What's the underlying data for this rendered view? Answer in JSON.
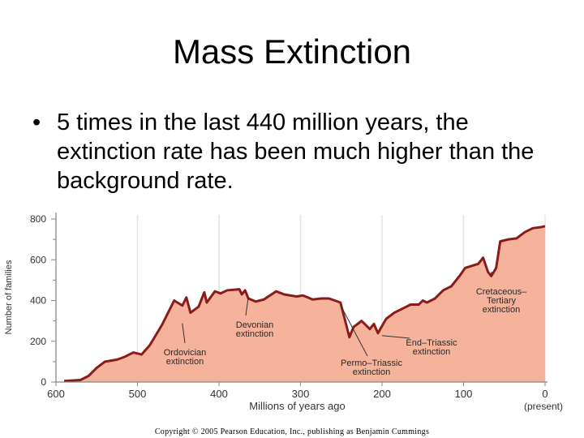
{
  "slide": {
    "title": "Mass Extinction",
    "bullet_symbol": "•",
    "bullet": "5 times in the last 440 million years, the extinction rate has been much higher than the background rate."
  },
  "copyright": "Copyright © 2005 Pearson Education, Inc., publishing as Benjamin Cummings",
  "colors": {
    "fill": "#f4b39a",
    "line": "#8b1a1a",
    "grid": "#e4e4e4"
  },
  "chart_data": {
    "type": "area",
    "title": "",
    "xlabel": "Millions of years ago",
    "ylabel": "Number of families",
    "xlim": [
      600,
      0
    ],
    "ylim": [
      0,
      800
    ],
    "x_ticks": [
      {
        "value": 600,
        "label": "600"
      },
      {
        "value": 500,
        "label": "500"
      },
      {
        "value": 400,
        "label": "400"
      },
      {
        "value": 300,
        "label": "300"
      },
      {
        "value": 200,
        "label": "200"
      },
      {
        "value": 100,
        "label": "100"
      },
      {
        "value": 0,
        "label": "0"
      }
    ],
    "x_tick_note": "(present)",
    "y_ticks": [
      0,
      200,
      400,
      600,
      800
    ],
    "grid": true,
    "series": [
      {
        "x": [
          590,
          570,
          560,
          550,
          540,
          525,
          515,
          505,
          495,
          485,
          470,
          455,
          445,
          440,
          435,
          425,
          418,
          415,
          405,
          398,
          390,
          375,
          372,
          368,
          364,
          355,
          345,
          330,
          320,
          305,
          297,
          285,
          275,
          265,
          251,
          240,
          235,
          225,
          215,
          210,
          205,
          200,
          195,
          185,
          175,
          165,
          155,
          150,
          145,
          135,
          125,
          115,
          105,
          98,
          90,
          82,
          76,
          70,
          66,
          60,
          55,
          45,
          35,
          25,
          15,
          5,
          0
        ],
        "y": [
          5,
          10,
          30,
          70,
          100,
          110,
          125,
          145,
          135,
          180,
          280,
          400,
          375,
          415,
          340,
          370,
          440,
          390,
          445,
          435,
          450,
          455,
          430,
          450,
          410,
          395,
          405,
          445,
          430,
          420,
          425,
          405,
          410,
          410,
          390,
          220,
          270,
          300,
          260,
          285,
          240,
          275,
          310,
          340,
          360,
          380,
          380,
          400,
          390,
          410,
          450,
          470,
          520,
          560,
          570,
          580,
          610,
          540,
          520,
          560,
          690,
          700,
          705,
          735,
          755,
          760,
          765
        ]
      }
    ],
    "annotations": [
      {
        "text": [
          "Ordovician",
          "extinction"
        ],
        "x": 445,
        "y": 300
      },
      {
        "text": [
          "Devonian",
          "extinction"
        ],
        "x": 364,
        "y": 430
      },
      {
        "text": [
          "Permo–Triassic",
          "extinction"
        ],
        "x": 251,
        "y": 390
      },
      {
        "text": [
          "End–Triassic",
          "extinction"
        ],
        "x": 200,
        "y": 240
      },
      {
        "text": [
          "Cretaceous–",
          "Tertiary",
          "extinction"
        ],
        "x": 66,
        "y": 540
      }
    ]
  }
}
